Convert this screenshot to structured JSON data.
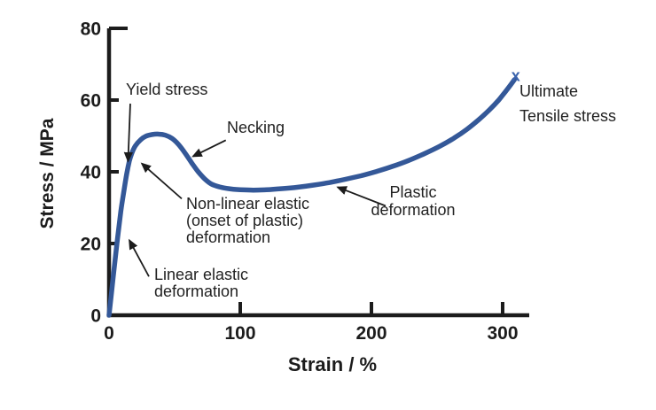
{
  "figure": {
    "background": "#ffffff"
  },
  "chart_data": {
    "type": "line",
    "title": "",
    "xlabel": "Strain / %",
    "ylabel": "Stress / MPa",
    "xlim": [
      0,
      320
    ],
    "ylim": [
      0,
      80
    ],
    "x_ticks": [
      0,
      100,
      200,
      300
    ],
    "y_ticks": [
      0,
      20,
      40,
      60,
      80
    ],
    "grid": false,
    "legend": "none",
    "line_color": "#345898",
    "axis_color": "#1c1c1c",
    "series": [
      {
        "name": "stress-strain-curve",
        "points": [
          [
            0,
            0
          ],
          [
            3,
            10
          ],
          [
            6,
            20
          ],
          [
            9,
            29
          ],
          [
            11.5,
            35
          ],
          [
            13.5,
            39.5
          ],
          [
            15.5,
            43
          ],
          [
            17.5,
            45.3
          ],
          [
            20,
            47.2
          ],
          [
            24,
            48.9
          ],
          [
            28,
            49.9
          ],
          [
            33,
            50.4
          ],
          [
            38,
            50.5
          ],
          [
            43,
            50.2
          ],
          [
            48,
            49.3
          ],
          [
            53,
            47.6
          ],
          [
            58,
            45.2
          ],
          [
            63,
            42.5
          ],
          [
            68,
            40
          ],
          [
            73,
            38
          ],
          [
            78,
            36.6
          ],
          [
            84,
            35.8
          ],
          [
            91,
            35.3
          ],
          [
            100,
            35
          ],
          [
            110,
            34.9
          ],
          [
            120,
            35
          ],
          [
            132,
            35.3
          ],
          [
            144,
            35.7
          ],
          [
            156,
            36.3
          ],
          [
            168,
            37
          ],
          [
            180,
            37.9
          ],
          [
            192,
            38.9
          ],
          [
            204,
            40.1
          ],
          [
            216,
            41.5
          ],
          [
            228,
            43.1
          ],
          [
            240,
            45
          ],
          [
            252,
            47.1
          ],
          [
            263,
            49.4
          ],
          [
            273,
            51.9
          ],
          [
            282,
            54.6
          ],
          [
            290,
            57.3
          ],
          [
            297,
            60
          ],
          [
            302,
            62.3
          ],
          [
            306,
            64.2
          ],
          [
            309,
            65.7
          ]
        ]
      }
    ],
    "end_marker": {
      "symbol": "x",
      "strain": 310,
      "stress": 66.8,
      "color": "#3a63ad",
      "meaning": "Ultimate Tensile stress point"
    },
    "annotations": [
      {
        "id": "yield-stress",
        "text": "Yield stress",
        "arrow": {
          "from": [
            16.2,
            59
          ],
          "to": [
            14.5,
            43
          ]
        }
      },
      {
        "id": "necking",
        "text": "Necking",
        "arrow": {
          "from": [
            89,
            48.8
          ],
          "to": [
            64,
            44.3
          ]
        }
      },
      {
        "id": "nonlinear-elastic",
        "text": "Non-linear elastic\n(onset of plastic)\ndeformation",
        "arrow": {
          "from": [
            55.4,
            32.5
          ],
          "to": [
            25,
            42.3
          ]
        }
      },
      {
        "id": "linear-elastic",
        "text": "Linear elastic\ndeformation",
        "arrow": {
          "from": [
            30.4,
            10.8
          ],
          "to": [
            15.5,
            20.9
          ]
        }
      },
      {
        "id": "plastic-deformation",
        "text": "Plastic\ndeformation",
        "arrow": {
          "from": [
            210.8,
            30.5
          ],
          "to": [
            174.3,
            35.7
          ]
        }
      },
      {
        "id": "ultimate-tensile-stress",
        "text": "Ultimate\nTensile stress",
        "arrow": null
      }
    ]
  }
}
